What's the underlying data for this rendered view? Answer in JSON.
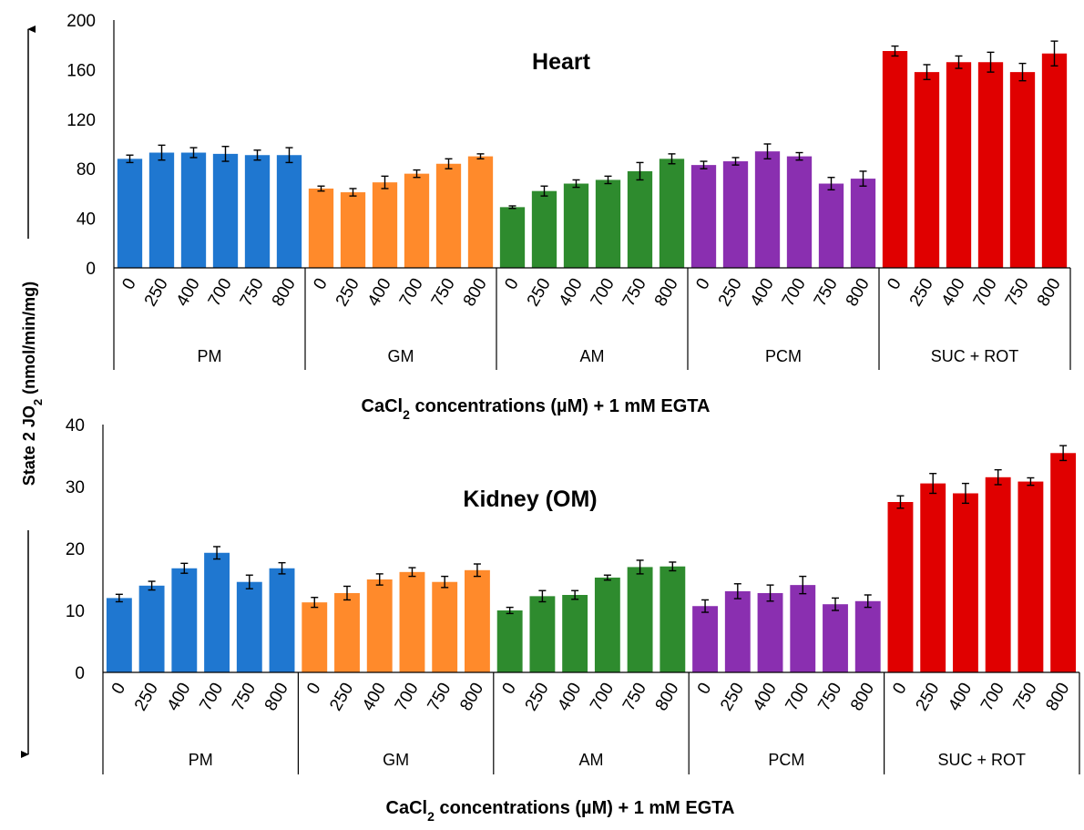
{
  "y_axis_label": "State 2 JO",
  "y_axis_label_sub": "2",
  "y_axis_label_unit": " (nmol/min/mg)",
  "colors": {
    "PM": "#1f77d0",
    "GM": "#ff8a2b",
    "AM": "#2e8b2e",
    "PCM": "#8a2fb0",
    "SUC + ROT": "#e00000"
  },
  "chart_data": [
    {
      "type": "bar",
      "title": "Heart",
      "xlabel_parts": [
        "CaCl",
        "2",
        " concentrations (µM) + 1 mM EGTA"
      ],
      "ylim": [
        0,
        200
      ],
      "yticks": [
        0,
        40,
        80,
        120,
        160,
        200
      ],
      "categories": [
        "0",
        "250",
        "400",
        "700",
        "750",
        "800"
      ],
      "groups": [
        {
          "name": "PM",
          "values": [
            88,
            93,
            93,
            92,
            91,
            91
          ],
          "errors": [
            3,
            6,
            4,
            6,
            4,
            6
          ]
        },
        {
          "name": "GM",
          "values": [
            64,
            61,
            69,
            76,
            84,
            90
          ],
          "errors": [
            2,
            3,
            5,
            3,
            4,
            2
          ]
        },
        {
          "name": "AM",
          "values": [
            49,
            62,
            68,
            71,
            78,
            88
          ],
          "errors": [
            1,
            4,
            3,
            3,
            7,
            4
          ]
        },
        {
          "name": "PCM",
          "values": [
            83,
            86,
            94,
            90,
            68,
            72
          ],
          "errors": [
            3,
            3,
            6,
            3,
            5,
            6
          ]
        },
        {
          "name": "SUC + ROT",
          "values": [
            175,
            158,
            166,
            166,
            158,
            173
          ],
          "errors": [
            4,
            6,
            5,
            8,
            7,
            10
          ]
        }
      ]
    },
    {
      "type": "bar",
      "title": "Kidney (OM)",
      "xlabel_parts": [
        "CaCl",
        "2",
        " concentrations (µM) + 1 mM EGTA"
      ],
      "ylim": [
        0,
        40
      ],
      "yticks": [
        0,
        10,
        20,
        30,
        40
      ],
      "categories": [
        "0",
        "250",
        "400",
        "700",
        "750",
        "800"
      ],
      "groups": [
        {
          "name": "PM",
          "values": [
            12,
            14,
            16.8,
            19.3,
            14.6,
            16.8
          ],
          "errors": [
            0.6,
            0.7,
            0.8,
            1.0,
            1.1,
            0.9
          ]
        },
        {
          "name": "GM",
          "values": [
            11.3,
            12.8,
            15.0,
            16.2,
            14.6,
            16.5
          ],
          "errors": [
            0.8,
            1.1,
            0.9,
            0.7,
            0.9,
            1.0
          ]
        },
        {
          "name": "AM",
          "values": [
            10,
            12.3,
            12.5,
            15.3,
            17.0,
            17.1
          ],
          "errors": [
            0.5,
            0.9,
            0.7,
            0.4,
            1.1,
            0.7
          ]
        },
        {
          "name": "PCM",
          "values": [
            10.7,
            13.1,
            12.8,
            14.1,
            11.0,
            11.5
          ],
          "errors": [
            1.0,
            1.2,
            1.3,
            1.4,
            1.0,
            1.0
          ]
        },
        {
          "name": "SUC + ROT",
          "values": [
            27.5,
            30.5,
            28.9,
            31.5,
            30.8,
            35.4
          ],
          "errors": [
            1.0,
            1.6,
            1.6,
            1.2,
            0.6,
            1.2
          ]
        }
      ]
    }
  ]
}
